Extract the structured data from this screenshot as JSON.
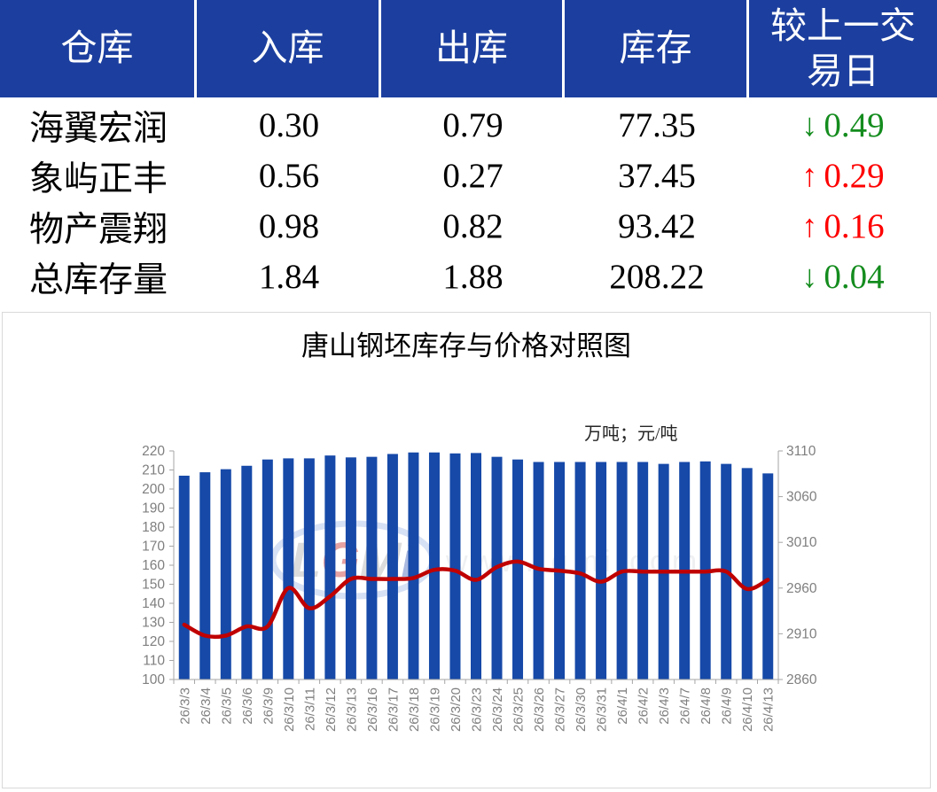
{
  "table": {
    "headers": [
      "仓库",
      "入库",
      "出库",
      "库存",
      "较上一交易日"
    ],
    "rows": [
      {
        "name": "海翼宏润",
        "inbound": "0.30",
        "outbound": "0.79",
        "stock": "77.35",
        "arrow": "↓",
        "change": "0.49",
        "direction": "down"
      },
      {
        "name": "象屿正丰",
        "inbound": "0.56",
        "outbound": "0.27",
        "stock": "37.45",
        "arrow": "↑",
        "change": "0.29",
        "direction": "up"
      },
      {
        "name": "物产震翔",
        "inbound": "0.98",
        "outbound": "0.82",
        "stock": "93.42",
        "arrow": "↑",
        "change": "0.16",
        "direction": "up"
      },
      {
        "name": "总库存量",
        "inbound": "1.84",
        "outbound": "1.88",
        "stock": "208.22",
        "arrow": "↓",
        "change": "0.04",
        "direction": "down"
      }
    ],
    "colors": {
      "header_bg": "#1c3f9f",
      "header_text": "#ffffff",
      "up": "#fe0000",
      "down": "#148c1e"
    }
  },
  "chart_data": {
    "type": "bar",
    "title": "唐山钢坯库存与价格对照图",
    "unit_label": "万吨；元/吨",
    "categories": [
      "26/3/3",
      "26/3/4",
      "26/3/5",
      "26/3/6",
      "26/3/9",
      "26/3/10",
      "26/3/11",
      "26/3/12",
      "26/3/13",
      "26/3/16",
      "26/3/17",
      "26/3/18",
      "26/3/19",
      "26/3/20",
      "26/3/23",
      "26/3/24",
      "26/3/25",
      "26/3/26",
      "26/3/27",
      "26/3/30",
      "26/3/31",
      "26/4/1",
      "26/4/2",
      "26/4/3",
      "26/4/7",
      "26/4/8",
      "26/4/9",
      "26/4/10",
      "26/4/13"
    ],
    "series": [
      {
        "name": "库存",
        "type": "bar",
        "axis": "left",
        "color": "#1649a8",
        "values": [
          207.0,
          208.8,
          210.4,
          212.2,
          215.5,
          216.1,
          216.1,
          217.6,
          216.6,
          216.9,
          218.4,
          219.2,
          219.2,
          218.7,
          218.9,
          216.9,
          215.5,
          214.2,
          214.2,
          214.2,
          214.2,
          214.2,
          214.2,
          213.2,
          214.2,
          214.5,
          213.2,
          211.0,
          208.2
        ]
      },
      {
        "name": "价格",
        "type": "line",
        "axis": "right",
        "color": "#c00000",
        "values": [
          2920,
          2908,
          2908,
          2918,
          2918,
          2960,
          2938,
          2951,
          2970,
          2970,
          2970,
          2971,
          2980,
          2979,
          2969,
          2983,
          2989,
          2981,
          2979,
          2976,
          2967,
          2978,
          2978,
          2978,
          2978,
          2978,
          2978,
          2959,
          2969
        ]
      }
    ],
    "left_axis": {
      "min": 100,
      "max": 220,
      "step": 10
    },
    "right_axis": {
      "min": 2860,
      "max": 3110,
      "step": 50
    },
    "grid": "off",
    "legend": "none",
    "watermark": {
      "logo": "LGMi",
      "url": "www.lgmi.com"
    }
  }
}
